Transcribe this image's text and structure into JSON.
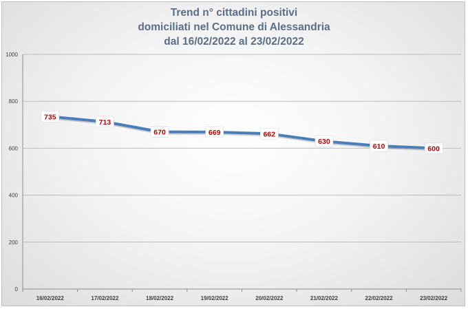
{
  "chart_data": {
    "type": "line",
    "title": [
      "Trend n° cittadini positivi",
      "domiciliati nel Comune di Alessandria",
      "dal 16/02/2022 al 23/02/2022"
    ],
    "categories": [
      "16/02/2022",
      "17/02/2022",
      "18/02/2022",
      "19/02/2022",
      "20/02/2022",
      "21/02/2022",
      "22/02/2022",
      "23/02/2022"
    ],
    "series": [
      {
        "values": [
          735,
          713,
          670,
          669,
          662,
          630,
          610,
          600
        ]
      }
    ],
    "yticks": [
      "0",
      "200",
      "400",
      "600",
      "800",
      "1000"
    ],
    "ylim": [
      0,
      1000
    ],
    "grid": true,
    "colors": {
      "line": "#4a7ebb",
      "label_text": "#c00000",
      "title": "#5a6e86"
    }
  }
}
